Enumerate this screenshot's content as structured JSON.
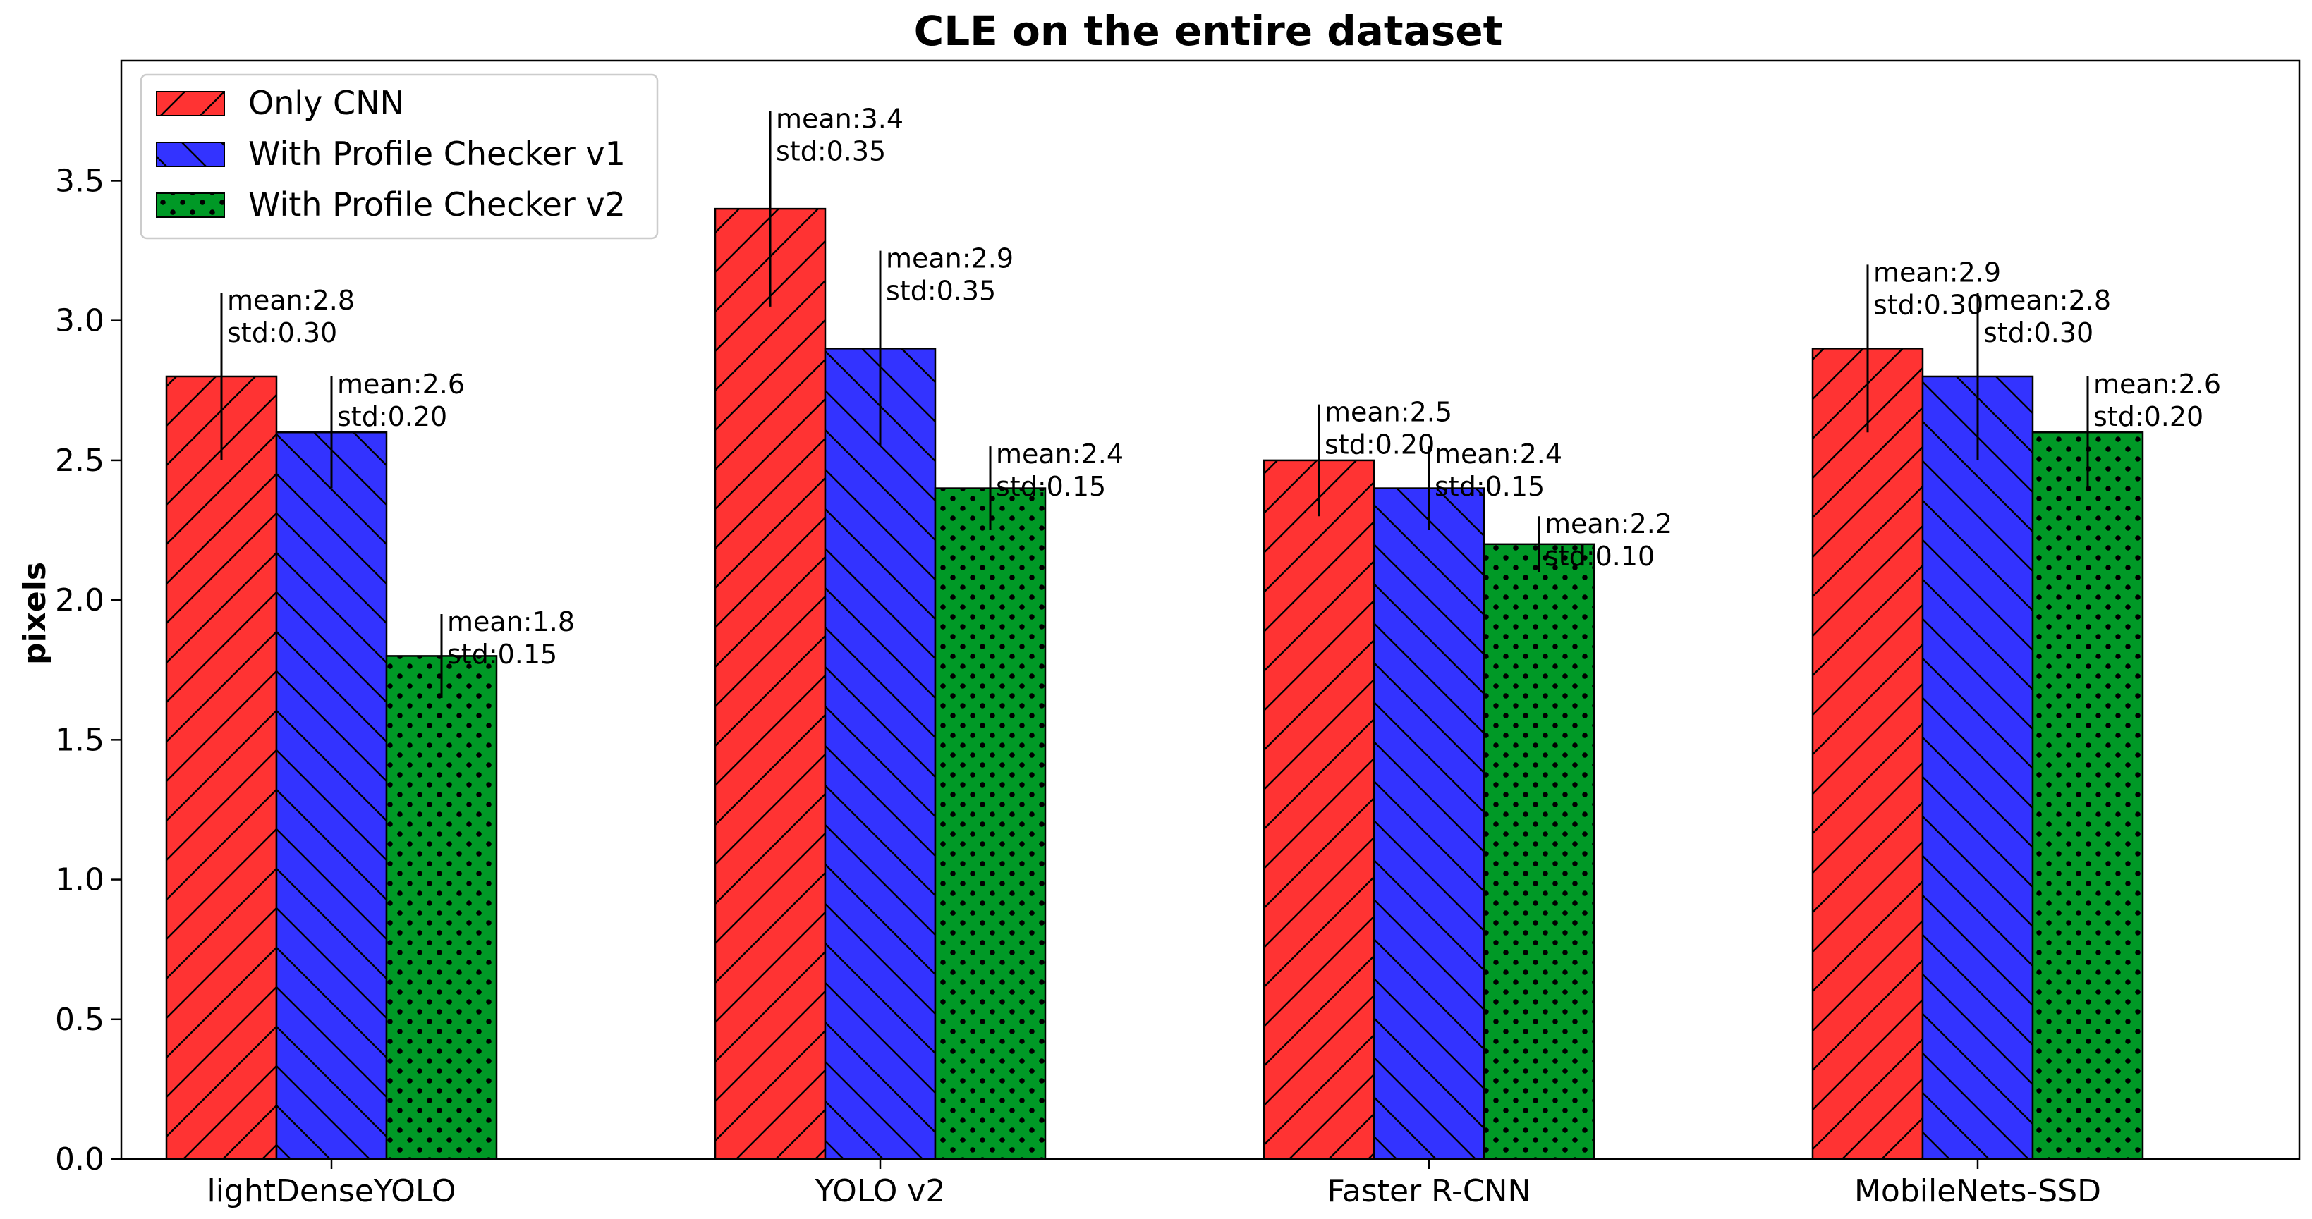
{
  "chart_data": {
    "type": "bar",
    "title": "CLE on the entire dataset",
    "xlabel": "",
    "ylabel": "pixels",
    "ylim": [
      0,
      3.93
    ],
    "yticks": [
      "0.0",
      "0.5",
      "1.0",
      "1.5",
      "2.0",
      "2.5",
      "3.0",
      "3.5"
    ],
    "categories": [
      "lightDenseYOLO",
      "YOLO v2",
      "Faster R-CNN",
      "MobileNets-SSD"
    ],
    "legend_position": "top-left",
    "series": [
      {
        "name": "Only CNN",
        "color": "#ff3333",
        "hatch": "diagonal-forward",
        "values": [
          2.8,
          3.4,
          2.5,
          2.9
        ],
        "errors": [
          0.3,
          0.35,
          0.2,
          0.3
        ],
        "labels": [
          [
            "mean:2.8",
            "std:0.30"
          ],
          [
            "mean:3.4",
            "std:0.35"
          ],
          [
            "mean:2.5",
            "std:0.20"
          ],
          [
            "mean:2.9",
            "std:0.30"
          ]
        ]
      },
      {
        "name": "With Profile Checker v1",
        "color": "#3333ff",
        "hatch": "diagonal-backward",
        "values": [
          2.6,
          2.9,
          2.4,
          2.8
        ],
        "errors": [
          0.2,
          0.35,
          0.15,
          0.3
        ],
        "labels": [
          [
            "mean:2.6",
            "std:0.20"
          ],
          [
            "mean:2.9",
            "std:0.35"
          ],
          [
            "mean:2.4",
            "std:0.15"
          ],
          [
            "mean:2.8",
            "std:0.30"
          ]
        ]
      },
      {
        "name": "With Profile Checker v2",
        "color": "#009926",
        "hatch": "dots",
        "values": [
          1.8,
          2.4,
          2.2,
          2.6
        ],
        "errors": [
          0.15,
          0.15,
          0.1,
          0.2
        ],
        "labels": [
          [
            "mean:1.8",
            "std:0.15"
          ],
          [
            "mean:2.4",
            "std:0.15"
          ],
          [
            "mean:2.2",
            "std:0.10"
          ],
          [
            "mean:2.6",
            "std:0.20"
          ]
        ]
      }
    ]
  }
}
